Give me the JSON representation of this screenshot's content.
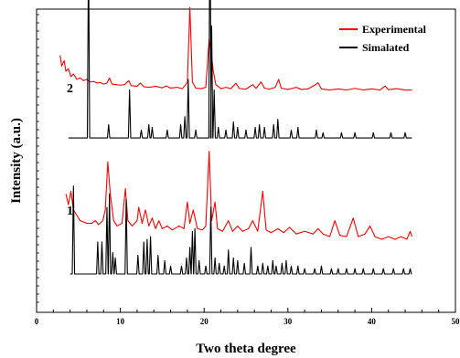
{
  "chart_data": {
    "type": "line",
    "xlabel": "Two theta degree",
    "ylabel": "Intensity (a.u.)",
    "xlim": [
      0,
      50
    ],
    "xticks": [
      0,
      10,
      20,
      30,
      40,
      50
    ],
    "y_tick_labels_shown": false,
    "grid": false,
    "legend_position": "top-right",
    "colors": {
      "Experimental": "#ff0000",
      "Simalated": "#000000"
    },
    "legend": [
      "Experimental",
      "Simalated"
    ],
    "patterns": [
      {
        "label": "2",
        "experimental": {
          "name": "Experimental",
          "baseline": 0.68,
          "points": [
            [
              2.8,
              0.82
            ],
            [
              3.0,
              0.78
            ],
            [
              3.3,
              0.8
            ],
            [
              3.5,
              0.76
            ],
            [
              3.8,
              0.77
            ],
            [
              4.1,
              0.74
            ],
            [
              4.4,
              0.75
            ],
            [
              4.8,
              0.73
            ],
            [
              5.2,
              0.735
            ],
            [
              5.6,
              0.725
            ],
            [
              6.0,
              0.73
            ],
            [
              6.4,
              0.72
            ],
            [
              6.8,
              0.722
            ],
            [
              7.2,
              0.716
            ],
            [
              7.6,
              0.718
            ],
            [
              8.0,
              0.712
            ],
            [
              8.4,
              0.716
            ],
            [
              8.7,
              0.735
            ],
            [
              9.0,
              0.712
            ],
            [
              9.5,
              0.71
            ],
            [
              10.0,
              0.708
            ],
            [
              10.5,
              0.71
            ],
            [
              11.0,
              0.725
            ],
            [
              11.3,
              0.706
            ],
            [
              12.0,
              0.704
            ],
            [
              12.4,
              0.716
            ],
            [
              12.8,
              0.702
            ],
            [
              13.5,
              0.7
            ],
            [
              14.2,
              0.704
            ],
            [
              15.0,
              0.698
            ],
            [
              15.5,
              0.705
            ],
            [
              16.0,
              0.697
            ],
            [
              16.8,
              0.7
            ],
            [
              17.4,
              0.695
            ],
            [
              17.8,
              0.71
            ],
            [
              18.0,
              0.72
            ],
            [
              18.3,
              1.0
            ],
            [
              18.6,
              0.72
            ],
            [
              19.0,
              0.697
            ],
            [
              19.6,
              0.695
            ],
            [
              20.2,
              0.7
            ],
            [
              20.6,
              0.88
            ],
            [
              20.8,
              0.84
            ],
            [
              21.1,
              0.76
            ],
            [
              21.4,
              0.71
            ],
            [
              22.0,
              0.695
            ],
            [
              22.6,
              0.7
            ],
            [
              23.2,
              0.695
            ],
            [
              23.8,
              0.715
            ],
            [
              24.2,
              0.696
            ],
            [
              25.0,
              0.693
            ],
            [
              25.8,
              0.71
            ],
            [
              26.2,
              0.696
            ],
            [
              26.8,
              0.72
            ],
            [
              27.2,
              0.697
            ],
            [
              27.8,
              0.693
            ],
            [
              28.5,
              0.7
            ],
            [
              28.9,
              0.73
            ],
            [
              29.2,
              0.697
            ],
            [
              30.0,
              0.692
            ],
            [
              31.0,
              0.7
            ],
            [
              31.6,
              0.692
            ],
            [
              32.4,
              0.694
            ],
            [
              33.2,
              0.708
            ],
            [
              33.6,
              0.717
            ],
            [
              34.0,
              0.694
            ],
            [
              35.0,
              0.69
            ],
            [
              36.0,
              0.694
            ],
            [
              37.0,
              0.69
            ],
            [
              38.0,
              0.696
            ],
            [
              39.0,
              0.69
            ],
            [
              40.0,
              0.694
            ],
            [
              41.0,
              0.69
            ],
            [
              41.6,
              0.705
            ],
            [
              42.0,
              0.691
            ],
            [
              43.0,
              0.695
            ],
            [
              44.0,
              0.69
            ],
            [
              44.8,
              0.69
            ]
          ]
        },
        "simulated": {
          "name": "Simalated",
          "baseline": 0.51,
          "peaks": [
            [
              6.2,
              0.72
            ],
            [
              8.6,
              0.05
            ],
            [
              11.1,
              0.18
            ],
            [
              12.5,
              0.03
            ],
            [
              13.4,
              0.05
            ],
            [
              13.8,
              0.04
            ],
            [
              15.6,
              0.03
            ],
            [
              17.2,
              0.05
            ],
            [
              17.7,
              0.08
            ],
            [
              18.1,
              0.22
            ],
            [
              19.0,
              0.03
            ],
            [
              20.7,
              0.9
            ],
            [
              20.9,
              0.42
            ],
            [
              21.2,
              0.18
            ],
            [
              21.7,
              0.04
            ],
            [
              22.6,
              0.03
            ],
            [
              23.5,
              0.06
            ],
            [
              24.0,
              0.04
            ],
            [
              25.0,
              0.03
            ],
            [
              26.1,
              0.04
            ],
            [
              26.6,
              0.05
            ],
            [
              27.2,
              0.04
            ],
            [
              28.3,
              0.05
            ],
            [
              28.8,
              0.07
            ],
            [
              30.4,
              0.03
            ],
            [
              31.2,
              0.04
            ],
            [
              33.4,
              0.03
            ],
            [
              34.2,
              0.02
            ],
            [
              36.4,
              0.02
            ],
            [
              38.0,
              0.02
            ],
            [
              40.2,
              0.02
            ],
            [
              42.3,
              0.02
            ],
            [
              44.0,
              0.02
            ]
          ]
        }
      },
      {
        "label": "1",
        "experimental": {
          "name": "Experimental",
          "baseline": 0.09,
          "points": [
            [
              3.5,
              0.3
            ],
            [
              3.8,
              0.26
            ],
            [
              4.1,
              0.31
            ],
            [
              4.4,
              0.24
            ],
            [
              4.8,
              0.22
            ],
            [
              5.2,
              0.2
            ],
            [
              5.6,
              0.195
            ],
            [
              6.0,
              0.19
            ],
            [
              6.6,
              0.19
            ],
            [
              7.0,
              0.2
            ],
            [
              7.4,
              0.185
            ],
            [
              7.9,
              0.2
            ],
            [
              8.2,
              0.24
            ],
            [
              8.5,
              0.42
            ],
            [
              8.8,
              0.3
            ],
            [
              9.2,
              0.2
            ],
            [
              9.6,
              0.18
            ],
            [
              10.2,
              0.19
            ],
            [
              10.6,
              0.32
            ],
            [
              10.9,
              0.2
            ],
            [
              11.4,
              0.18
            ],
            [
              12.0,
              0.2
            ],
            [
              12.2,
              0.25
            ],
            [
              12.6,
              0.19
            ],
            [
              13.0,
              0.24
            ],
            [
              13.4,
              0.18
            ],
            [
              13.8,
              0.21
            ],
            [
              14.2,
              0.17
            ],
            [
              14.6,
              0.2
            ],
            [
              15.0,
              0.17
            ],
            [
              15.6,
              0.18
            ],
            [
              16.2,
              0.165
            ],
            [
              17.0,
              0.18
            ],
            [
              17.6,
              0.17
            ],
            [
              18.0,
              0.27
            ],
            [
              18.3,
              0.19
            ],
            [
              18.7,
              0.24
            ],
            [
              19.2,
              0.17
            ],
            [
              19.8,
              0.165
            ],
            [
              20.2,
              0.18
            ],
            [
              20.6,
              0.46
            ],
            [
              20.9,
              0.2
            ],
            [
              21.3,
              0.27
            ],
            [
              21.6,
              0.17
            ],
            [
              22.2,
              0.16
            ],
            [
              22.9,
              0.2
            ],
            [
              23.4,
              0.16
            ],
            [
              24.0,
              0.18
            ],
            [
              24.6,
              0.16
            ],
            [
              25.3,
              0.17
            ],
            [
              25.8,
              0.2
            ],
            [
              26.4,
              0.16
            ],
            [
              27.0,
              0.31
            ],
            [
              27.4,
              0.165
            ],
            [
              28.0,
              0.155
            ],
            [
              28.8,
              0.17
            ],
            [
              29.5,
              0.155
            ],
            [
              30.2,
              0.175
            ],
            [
              31.0,
              0.15
            ],
            [
              32.0,
              0.16
            ],
            [
              33.0,
              0.15
            ],
            [
              33.6,
              0.17
            ],
            [
              34.2,
              0.15
            ],
            [
              35.0,
              0.14
            ],
            [
              35.6,
              0.2
            ],
            [
              36.2,
              0.145
            ],
            [
              37.0,
              0.14
            ],
            [
              37.8,
              0.21
            ],
            [
              38.4,
              0.14
            ],
            [
              39.2,
              0.15
            ],
            [
              39.8,
              0.18
            ],
            [
              40.4,
              0.14
            ],
            [
              41.2,
              0.13
            ],
            [
              42.0,
              0.14
            ],
            [
              42.8,
              0.13
            ],
            [
              43.5,
              0.14
            ],
            [
              44.2,
              0.13
            ],
            [
              44.6,
              0.16
            ],
            [
              44.8,
              0.14
            ]
          ]
        },
        "simulated": {
          "name": "Simalated",
          "baseline": 0.0,
          "peaks": [
            [
              4.4,
              0.33
            ],
            [
              7.3,
              0.12
            ],
            [
              7.8,
              0.12
            ],
            [
              8.4,
              0.25
            ],
            [
              8.7,
              0.3
            ],
            [
              9.1,
              0.08
            ],
            [
              9.4,
              0.06
            ],
            [
              10.7,
              0.28
            ],
            [
              12.1,
              0.07
            ],
            [
              12.8,
              0.12
            ],
            [
              13.2,
              0.13
            ],
            [
              13.6,
              0.14
            ],
            [
              14.5,
              0.07
            ],
            [
              15.3,
              0.05
            ],
            [
              16.0,
              0.03
            ],
            [
              17.3,
              0.03
            ],
            [
              17.9,
              0.06
            ],
            [
              18.3,
              0.1
            ],
            [
              18.6,
              0.16
            ],
            [
              18.9,
              0.17
            ],
            [
              19.4,
              0.05
            ],
            [
              20.2,
              0.03
            ],
            [
              20.8,
              0.25
            ],
            [
              21.3,
              0.06
            ],
            [
              21.8,
              0.04
            ],
            [
              22.4,
              0.03
            ],
            [
              22.9,
              0.09
            ],
            [
              23.5,
              0.06
            ],
            [
              24.0,
              0.05
            ],
            [
              24.8,
              0.04
            ],
            [
              25.6,
              0.1
            ],
            [
              26.4,
              0.03
            ],
            [
              27.0,
              0.04
            ],
            [
              27.6,
              0.03
            ],
            [
              28.2,
              0.05
            ],
            [
              28.6,
              0.03
            ],
            [
              29.3,
              0.04
            ],
            [
              29.8,
              0.05
            ],
            [
              30.4,
              0.03
            ],
            [
              31.2,
              0.03
            ],
            [
              32.0,
              0.02
            ],
            [
              33.2,
              0.02
            ],
            [
              34.0,
              0.03
            ],
            [
              35.2,
              0.02
            ],
            [
              36.0,
              0.02
            ],
            [
              37.0,
              0.02
            ],
            [
              38.0,
              0.02
            ],
            [
              39.0,
              0.02
            ],
            [
              40.2,
              0.02
            ],
            [
              41.4,
              0.02
            ],
            [
              42.6,
              0.02
            ],
            [
              43.8,
              0.02
            ],
            [
              44.6,
              0.02
            ]
          ]
        }
      }
    ]
  }
}
